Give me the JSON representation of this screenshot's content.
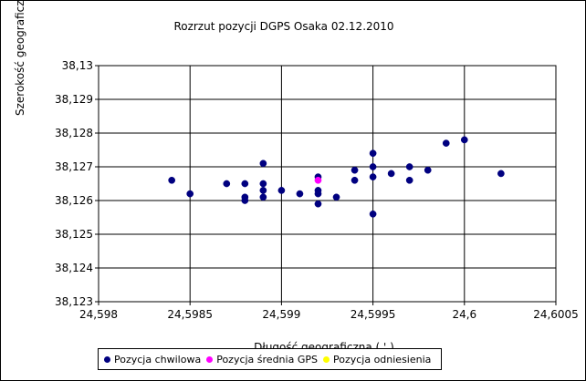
{
  "chart_data": {
    "type": "scatter",
    "title": "Rozrzut pozycji DGPS Osaka 02.12.2010",
    "xlabel": "Długość geograficzna ( ' )",
    "ylabel": "Szerokość geograficzna",
    "xlim": [
      24.598,
      24.6005
    ],
    "ylim": [
      38.123,
      38.13
    ],
    "x_ticks": [
      "24,598",
      "24,5985",
      "24,599",
      "24,5995",
      "24,6",
      "24,6005"
    ],
    "y_ticks": [
      "38,13",
      "38,129",
      "38,128",
      "38,127",
      "38,126",
      "38,125",
      "38,124",
      "38,123"
    ],
    "grid": true,
    "legend_position": "bottom",
    "series": [
      {
        "name": "Pozycja chwilowa",
        "color": "#000080",
        "points": [
          [
            24.5984,
            38.1266
          ],
          [
            24.5985,
            38.1262
          ],
          [
            24.5987,
            38.1265
          ],
          [
            24.5988,
            38.1265
          ],
          [
            24.5988,
            38.1261
          ],
          [
            24.5988,
            38.126
          ],
          [
            24.5989,
            38.1271
          ],
          [
            24.5989,
            38.1265
          ],
          [
            24.5989,
            38.1263
          ],
          [
            24.5989,
            38.1261
          ],
          [
            24.599,
            38.1263
          ],
          [
            24.5991,
            38.1262
          ],
          [
            24.5992,
            38.1267
          ],
          [
            24.5992,
            38.1263
          ],
          [
            24.5992,
            38.1262
          ],
          [
            24.5992,
            38.1259
          ],
          [
            24.5993,
            38.1261
          ],
          [
            24.5994,
            38.1269
          ],
          [
            24.5994,
            38.1266
          ],
          [
            24.5995,
            38.1274
          ],
          [
            24.5995,
            38.127
          ],
          [
            24.5995,
            38.1267
          ],
          [
            24.5995,
            38.1256
          ],
          [
            24.5996,
            38.1268
          ],
          [
            24.5997,
            38.127
          ],
          [
            24.5997,
            38.1266
          ],
          [
            24.5998,
            38.1269
          ],
          [
            24.5999,
            38.1277
          ],
          [
            24.6,
            38.1278
          ],
          [
            24.6002,
            38.1268
          ]
        ]
      },
      {
        "name": "Pozycja średnia GPS",
        "color": "#ff00ff",
        "points": [
          [
            24.5992,
            38.1266
          ]
        ]
      },
      {
        "name": "Pozycja odniesienia",
        "color": "#ffff00",
        "points": []
      }
    ]
  }
}
